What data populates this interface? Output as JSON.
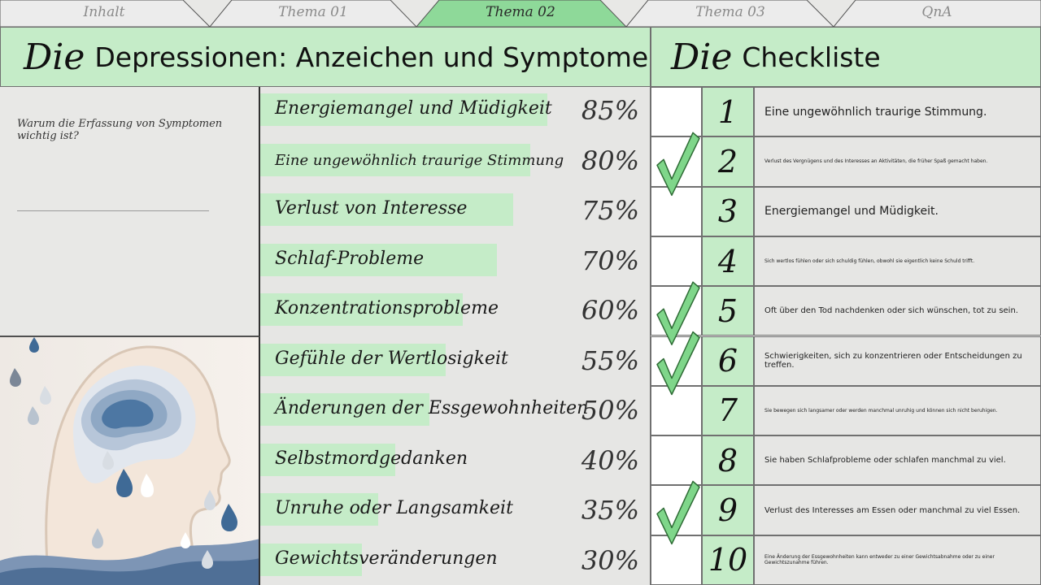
{
  "tabs": [
    {
      "label": "Inhalt",
      "active": false
    },
    {
      "label": "Thema 01",
      "active": false
    },
    {
      "label": "Thema 02",
      "active": true
    },
    {
      "label": "Thema 03",
      "active": false
    },
    {
      "label": "QnA",
      "active": false
    }
  ],
  "left_header": {
    "prefix": "Die",
    "title": "Depressionen: Anzeichen und Symptome"
  },
  "right_header": {
    "prefix": "Die",
    "title": "Checkliste"
  },
  "question": "Warum die Erfassung von Symptomen wichtig ist?",
  "symptoms": [
    {
      "label": "Energiemangel und Müdigkeit",
      "value": "85%",
      "fill": 0.85
    },
    {
      "label": "Eine ungewöhnlich traurige Stimmung",
      "value": "80%",
      "fill": 0.8
    },
    {
      "label": "Verlust von Interesse",
      "value": "75%",
      "fill": 0.75
    },
    {
      "label": "Schlaf-Probleme",
      "value": "70%",
      "fill": 0.7
    },
    {
      "label": "Konzentrationsprobleme",
      "value": "60%",
      "fill": 0.6
    },
    {
      "label": "Gefühle der Wertlosigkeit",
      "value": "55%",
      "fill": 0.55
    },
    {
      "label": "Änderungen der Essgewohnheiten",
      "value": "50%",
      "fill": 0.5
    },
    {
      "label": "Selbstmordgedanken",
      "value": "40%",
      "fill": 0.4
    },
    {
      "label": "Unruhe oder Langsamkeit",
      "value": "35%",
      "fill": 0.35
    },
    {
      "label": "Gewichtsveränderungen",
      "value": "30%",
      "fill": 0.3
    }
  ],
  "checklist": [
    {
      "num": "1",
      "text": "Eine ungewöhnlich traurige Stimmung.",
      "checked": false
    },
    {
      "num": "2",
      "text": "Verlust des Vergnügens und des Interesses an Aktivitäten, die früher Spaß gemacht haben.",
      "checked": true
    },
    {
      "num": "3",
      "text": "Energiemangel und Müdigkeit.",
      "checked": false
    },
    {
      "num": "4",
      "text": "Sich wertlos fühlen oder sich schuldig fühlen, obwohl sie eigentlich keine Schuld trifft.",
      "checked": false
    },
    {
      "num": "5",
      "text": "Oft über den Tod nachdenken oder sich wünschen, tot zu sein.",
      "checked": true
    },
    {
      "num": "6",
      "text": "Schwierigkeiten, sich zu konzentrieren oder Entscheidungen zu treffen.",
      "checked": true
    },
    {
      "num": "7",
      "text": "Sie bewegen sich langsamer oder werden manchmal unruhig und können sich nicht beruhigen.",
      "checked": false
    },
    {
      "num": "8",
      "text": "Sie haben Schlafprobleme oder schlafen manchmal zu viel.",
      "checked": false
    },
    {
      "num": "9",
      "text": "Verlust des Interesses am Essen oder manchmal zu viel Essen.",
      "checked": true
    },
    {
      "num": "10",
      "text": "Eine Änderung der Essgewohnheiten kann entweder zu einer Gewichtsabnahme oder zu einer Gewichtszunahme führen.",
      "checked": false
    }
  ],
  "colors": {
    "accent": "#c5ecc8",
    "active_tab": "#8ed999",
    "check": "#7fd68a",
    "check_stroke": "#2e6b35"
  },
  "illustration": {
    "icon": "head-rain-cloud-illustration"
  }
}
